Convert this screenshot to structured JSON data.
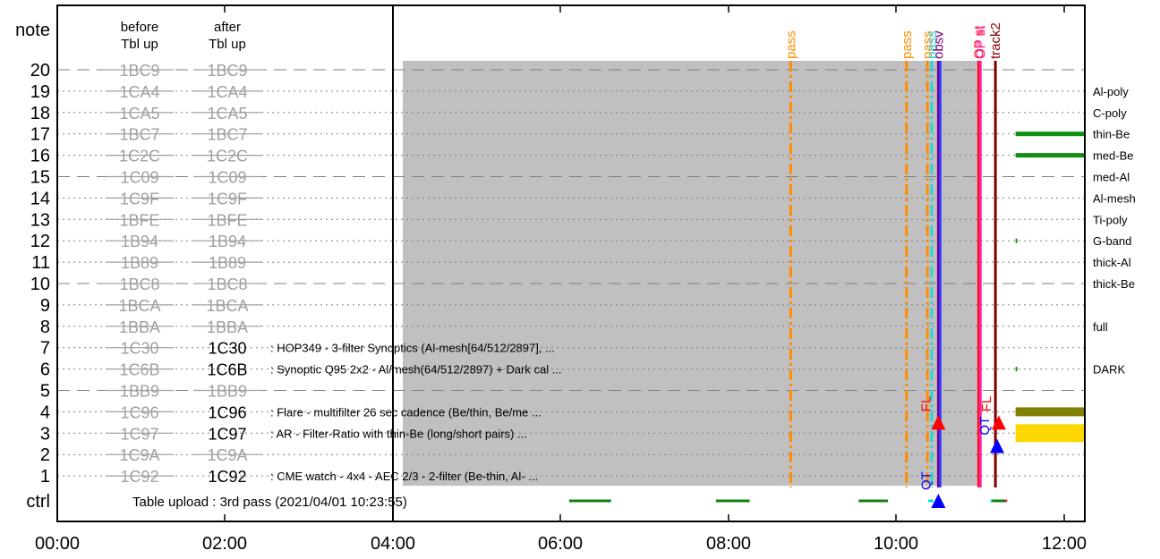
{
  "chart_data": {
    "type": "timeline",
    "x_tick_labels": [
      "00:00",
      "02:00",
      "04:00",
      "06:00",
      "08:00",
      "10:00",
      "12:00"
    ],
    "x_ticks_hours": [
      0,
      2,
      4,
      6,
      8,
      10,
      12
    ],
    "x_range_hours": [
      0,
      12.25
    ],
    "y_axis_title": "note",
    "ctrl_label": "ctrl",
    "before_header": [
      "before",
      "Tbl up"
    ],
    "after_header": [
      "after",
      "Tbl up"
    ],
    "table_upload_note": "Table upload : 3rd pass (2021/04/01 10:23:55)",
    "rows": [
      {
        "n": "20",
        "before": "1BC9",
        "after": "1BC9",
        "after_updated": false,
        "desc": "",
        "filter": "",
        "major": true
      },
      {
        "n": "19",
        "before": "1CA4",
        "after": "1CA4",
        "after_updated": false,
        "desc": "",
        "filter": "Al-poly",
        "major": false
      },
      {
        "n": "18",
        "before": "1CA5",
        "after": "1CA5",
        "after_updated": false,
        "desc": "",
        "filter": "C-poly",
        "major": false
      },
      {
        "n": "17",
        "before": "1BC7",
        "after": "1BC7",
        "after_updated": false,
        "desc": "",
        "filter": "thin-Be",
        "major": false
      },
      {
        "n": "16",
        "before": "1C2C",
        "after": "1C2C",
        "after_updated": false,
        "desc": "",
        "filter": "med-Be",
        "major": false
      },
      {
        "n": "15",
        "before": "1C09",
        "after": "1C09",
        "after_updated": false,
        "desc": "",
        "filter": "med-Al",
        "major": true
      },
      {
        "n": "14",
        "before": "1C9F",
        "after": "1C9F",
        "after_updated": false,
        "desc": "",
        "filter": "Al-mesh",
        "major": false
      },
      {
        "n": "13",
        "before": "1BFE",
        "after": "1BFE",
        "after_updated": false,
        "desc": "",
        "filter": "Ti-poly",
        "major": false
      },
      {
        "n": "12",
        "before": "1B94",
        "after": "1B94",
        "after_updated": false,
        "desc": "",
        "filter": "G-band",
        "major": false
      },
      {
        "n": "11",
        "before": "1B89",
        "after": "1B89",
        "after_updated": false,
        "desc": "",
        "filter": "thick-Al",
        "major": false
      },
      {
        "n": "10",
        "before": "1BC8",
        "after": "1BC8",
        "after_updated": false,
        "desc": "",
        "filter": "thick-Be",
        "major": true
      },
      {
        "n": "9",
        "before": "1BCA",
        "after": "1BCA",
        "after_updated": false,
        "desc": "",
        "filter": "",
        "major": false
      },
      {
        "n": "8",
        "before": "1BBA",
        "after": "1BBA",
        "after_updated": false,
        "desc": "",
        "filter": "full",
        "major": false
      },
      {
        "n": "7",
        "before": "1C30",
        "after": "1C30",
        "after_updated": true,
        "desc": ": HOP349 - 3-filter Synoptics (Al-mesh[64/512/2897], ...",
        "filter": "",
        "major": false
      },
      {
        "n": "6",
        "before": "1C6B",
        "after": "1C6B",
        "after_updated": true,
        "desc": ": Synoptic Q95 2x2 - Al/mesh(64/512/2897) + Dark cal ...",
        "filter": "DARK",
        "major": false
      },
      {
        "n": "5",
        "before": "1BB9",
        "after": "1BB9",
        "after_updated": false,
        "desc": "",
        "filter": "",
        "major": true
      },
      {
        "n": "4",
        "before": "1C96",
        "after": "1C96",
        "after_updated": true,
        "desc": ": Flare - multifilter 26 sec cadence (Be/thin, Be/me ...",
        "filter": "",
        "major": false
      },
      {
        "n": "3",
        "before": "1C97",
        "after": "1C97",
        "after_updated": true,
        "desc": ": AR - Filter-Ratio with thin-Be (long/short pairs)  ...",
        "filter": "",
        "major": false
      },
      {
        "n": "2",
        "before": "1C9A",
        "after": "1C9A",
        "after_updated": false,
        "desc": "",
        "filter": "",
        "major": false
      },
      {
        "n": "1",
        "before": "1C92",
        "after": "1C92",
        "after_updated": true,
        "desc": ": CME watch - 4x4 - AEC 2/3 - 2-filter (Be-thin, Al- ...",
        "filter": "",
        "major": false
      }
    ],
    "shaded_region_hours": [
      4.0,
      10.98
    ],
    "event_lines": [
      {
        "label": "pass",
        "hour": 8.74,
        "color": "#ff8c00",
        "style": "dashdot"
      },
      {
        "label": "pass",
        "hour": 10.12,
        "color": "#ff8c00",
        "style": "dashdot"
      },
      {
        "label": "pass",
        "hour": 10.37,
        "color": "#ff8c00",
        "style": "dashdot"
      },
      {
        "label": "pass",
        "hour": 10.42,
        "color": "#2ad4d4",
        "style": "dashdot"
      },
      {
        "label": "obsv",
        "hour": 10.5,
        "color": "#800080",
        "style": "solid"
      },
      {
        "label": "",
        "hour": 10.52,
        "color": "#3030ff",
        "style": "solid"
      },
      {
        "label": "OP st",
        "hour": 10.98,
        "color": "#ff1010",
        "style": "solid"
      },
      {
        "label": "OP st",
        "hour": 11.0,
        "color": "#ff20a0",
        "style": "solid"
      },
      {
        "label": "track2",
        "hour": 11.18,
        "color": "#800000",
        "style": "solid"
      }
    ],
    "markers": [
      {
        "label": "FL",
        "hour": 10.5,
        "color": "#ff0000",
        "note": 3.5,
        "shape": "triangle-up"
      },
      {
        "label": "QT",
        "hour": 10.5,
        "color": "#0000ff",
        "note": 0.25,
        "shape": "triangle-up"
      },
      {
        "label": "FL",
        "hour": 11.22,
        "color": "#ff0000",
        "note": 3.5,
        "shape": "triangle-up"
      },
      {
        "label": "QT",
        "hour": 11.2,
        "color": "#0000ff",
        "note": 2.4,
        "shape": "triangle-up"
      }
    ],
    "ctrl_segments": [
      {
        "start": 6.1,
        "end": 6.6,
        "color": "#108010"
      },
      {
        "start": 7.85,
        "end": 8.25,
        "color": "#108010"
      },
      {
        "start": 9.55,
        "end": 9.9,
        "color": "#108010"
      },
      {
        "start": 10.38,
        "end": 10.44,
        "color": "#00e0e0"
      },
      {
        "start": 11.12,
        "end": 11.16,
        "color": "#00e0e0"
      },
      {
        "start": 11.14,
        "end": 11.32,
        "color": "#108010"
      },
      {
        "start": 11.3,
        "end": 11.32,
        "color": "#ff20a0"
      }
    ],
    "filter_bars": [
      {
        "note": 17,
        "start": 11.42,
        "end": 12.25,
        "color": "#109010",
        "thickness": "thin"
      },
      {
        "note": 16,
        "start": 11.42,
        "end": 12.25,
        "color": "#109010",
        "thickness": "thin"
      },
      {
        "note": 12,
        "start": 11.42,
        "end": 11.44,
        "color": "#109010",
        "thickness": "thin"
      },
      {
        "note": 6,
        "start": 11.42,
        "end": 11.44,
        "color": "#109010",
        "thickness": "thin"
      },
      {
        "note": 4,
        "start": 11.42,
        "end": 12.25,
        "color": "#808000",
        "thickness": "medium"
      },
      {
        "note": 3,
        "start": 11.42,
        "end": 12.25,
        "color": "#ffd700",
        "thickness": "thick"
      }
    ],
    "colors": {
      "shade": "#c0c0c0",
      "faded_label": "#a0a0a0",
      "grid": "#808080"
    }
  }
}
